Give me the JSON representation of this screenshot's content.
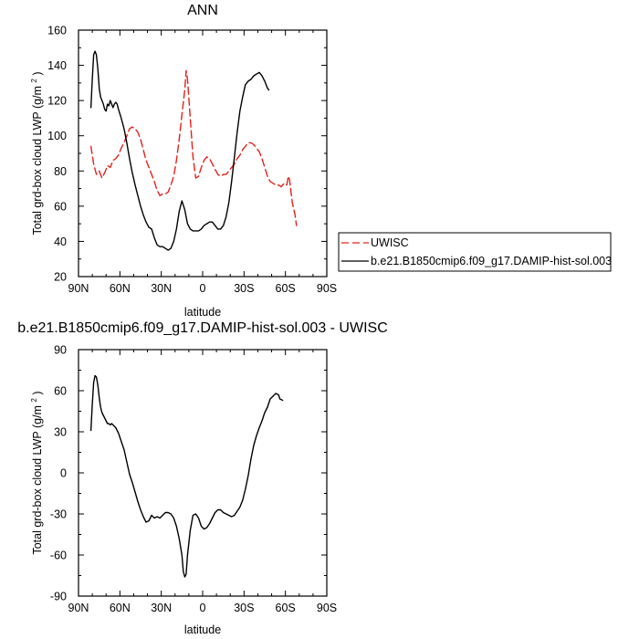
{
  "chart_data": [
    {
      "type": "line",
      "title": "ANN",
      "xlabel": "latitude",
      "ylabel": "Total grd-box cloud LWP",
      "ylabel_unit": "(g/m",
      "ylabel_unit_sup": "2",
      "ylabel_unit_close": ")",
      "xlim": [
        90,
        -90
      ],
      "ylim": [
        20,
        160
      ],
      "xticks": [
        {
          "value": 90,
          "label": "90N"
        },
        {
          "value": 60,
          "label": "60N"
        },
        {
          "value": 30,
          "label": "30N"
        },
        {
          "value": 0,
          "label": "0"
        },
        {
          "value": -30,
          "label": "30S"
        },
        {
          "value": -60,
          "label": "60S"
        },
        {
          "value": -90,
          "label": "90S"
        }
      ],
      "yticks": [
        {
          "value": 20,
          "label": "20"
        },
        {
          "value": 40,
          "label": "40"
        },
        {
          "value": 60,
          "label": "60"
        },
        {
          "value": 80,
          "label": "80"
        },
        {
          "value": 100,
          "label": "100"
        },
        {
          "value": 120,
          "label": "120"
        },
        {
          "value": 140,
          "label": "140"
        },
        {
          "value": 160,
          "label": "160"
        }
      ],
      "legend_position": "outside-right",
      "series": [
        {
          "name": "UWISC",
          "color": "#e8201a",
          "dash": "dashed",
          "points": [
            [
              81,
              94
            ],
            [
              79,
              84
            ],
            [
              77,
              78
            ],
            [
              75,
              80
            ],
            [
              73,
              76
            ],
            [
              71,
              79
            ],
            [
              69,
              83
            ],
            [
              67,
              82
            ],
            [
              65,
              86
            ],
            [
              63,
              87
            ],
            [
              61,
              89
            ],
            [
              59,
              93
            ],
            [
              57,
              96
            ],
            [
              55,
              100
            ],
            [
              53,
              104
            ],
            [
              51,
              105
            ],
            [
              49,
              104
            ],
            [
              47,
              102
            ],
            [
              45,
              98
            ],
            [
              43,
              92
            ],
            [
              41,
              86
            ],
            [
              39,
              82
            ],
            [
              37,
              78
            ],
            [
              35,
              74
            ],
            [
              33,
              69
            ],
            [
              31,
              66
            ],
            [
              29,
              67
            ],
            [
              27,
              67
            ],
            [
              25,
              68
            ],
            [
              23,
              72
            ],
            [
              21,
              77
            ],
            [
              19,
              86
            ],
            [
              17,
              98
            ],
            [
              15,
              112
            ],
            [
              13,
              126
            ],
            [
              12,
              137
            ],
            [
              11,
              132
            ],
            [
              9,
              110
            ],
            [
              7,
              88
            ],
            [
              5,
              76
            ],
            [
              3,
              77
            ],
            [
              1,
              82
            ],
            [
              -1,
              86
            ],
            [
              -3,
              88
            ],
            [
              -5,
              87
            ],
            [
              -7,
              84
            ],
            [
              -9,
              81
            ],
            [
              -11,
              78
            ],
            [
              -13,
              77
            ],
            [
              -15,
              78
            ],
            [
              -17,
              78
            ],
            [
              -19,
              80
            ],
            [
              -21,
              82
            ],
            [
              -23,
              84
            ],
            [
              -25,
              87
            ],
            [
              -27,
              89
            ],
            [
              -29,
              92
            ],
            [
              -31,
              94
            ],
            [
              -33,
              96
            ],
            [
              -35,
              96
            ],
            [
              -37,
              95
            ],
            [
              -39,
              93
            ],
            [
              -41,
              91
            ],
            [
              -43,
              87
            ],
            [
              -45,
              82
            ],
            [
              -47,
              77
            ],
            [
              -49,
              74
            ],
            [
              -51,
              73
            ],
            [
              -53,
              72
            ],
            [
              -55,
              72
            ],
            [
              -57,
              71
            ],
            [
              -59,
              73
            ],
            [
              -61,
              72
            ],
            [
              -62,
              77
            ],
            [
              -63,
              75
            ],
            [
              -65,
              62
            ],
            [
              -67,
              55
            ],
            [
              -68,
              49
            ]
          ]
        },
        {
          "name": "b.e21.B1850cmip6.f09_g17.DAMIP-hist-sol.003",
          "color": "#000000",
          "dash": "solid",
          "points": [
            [
              81,
              116
            ],
            [
              80,
              132
            ],
            [
              79,
              146
            ],
            [
              78,
              148
            ],
            [
              77,
              146
            ],
            [
              76,
              138
            ],
            [
              75,
              127
            ],
            [
              74,
              122
            ],
            [
              73,
              120
            ],
            [
              72,
              118
            ],
            [
              71,
              115
            ],
            [
              70,
              114
            ],
            [
              69,
              118
            ],
            [
              68,
              117
            ],
            [
              67,
              120
            ],
            [
              66,
              118
            ],
            [
              65,
              116
            ],
            [
              64,
              118
            ],
            [
              63,
              119
            ],
            [
              62,
              118
            ],
            [
              61,
              115
            ],
            [
              59,
              110
            ],
            [
              57,
              104
            ],
            [
              55,
              96
            ],
            [
              53,
              87
            ],
            [
              51,
              79
            ],
            [
              49,
              72
            ],
            [
              47,
              66
            ],
            [
              45,
              60
            ],
            [
              43,
              55
            ],
            [
              41,
              51
            ],
            [
              39,
              48
            ],
            [
              37,
              47
            ],
            [
              35,
              42
            ],
            [
              33,
              38
            ],
            [
              31,
              37
            ],
            [
              29,
              37
            ],
            [
              27,
              36
            ],
            [
              25,
              35
            ],
            [
              23,
              36
            ],
            [
              21,
              40
            ],
            [
              19,
              47
            ],
            [
              17,
              57
            ],
            [
              15,
              63
            ],
            [
              13,
              58
            ],
            [
              11,
              50
            ],
            [
              9,
              47
            ],
            [
              7,
              46
            ],
            [
              5,
              46
            ],
            [
              3,
              46
            ],
            [
              1,
              47
            ],
            [
              -1,
              49
            ],
            [
              -3,
              50
            ],
            [
              -5,
              51
            ],
            [
              -7,
              51
            ],
            [
              -9,
              49
            ],
            [
              -11,
              47
            ],
            [
              -13,
              47
            ],
            [
              -15,
              49
            ],
            [
              -17,
              54
            ],
            [
              -19,
              62
            ],
            [
              -21,
              74
            ],
            [
              -23,
              88
            ],
            [
              -25,
              102
            ],
            [
              -27,
              114
            ],
            [
              -29,
              122
            ],
            [
              -31,
              129
            ],
            [
              -33,
              131
            ],
            [
              -35,
              132
            ],
            [
              -37,
              134
            ],
            [
              -39,
              135
            ],
            [
              -41,
              136
            ],
            [
              -43,
              134
            ],
            [
              -45,
              131
            ],
            [
              -47,
              127
            ],
            [
              -48,
              126
            ]
          ]
        }
      ]
    },
    {
      "type": "line",
      "title": "b.e21.B1850cmip6.f09_g17.DAMIP-hist-sol.003 - UWISC",
      "xlabel": "latitude",
      "ylabel": "Total grd-box cloud LWP",
      "ylabel_unit": "(g/m",
      "ylabel_unit_sup": "2",
      "ylabel_unit_close": ")",
      "xlim": [
        90,
        -90
      ],
      "ylim": [
        -90,
        90
      ],
      "xticks": [
        {
          "value": 90,
          "label": "90N"
        },
        {
          "value": 60,
          "label": "60N"
        },
        {
          "value": 30,
          "label": "30N"
        },
        {
          "value": 0,
          "label": "0"
        },
        {
          "value": -30,
          "label": "30S"
        },
        {
          "value": -60,
          "label": "60S"
        },
        {
          "value": -90,
          "label": "90S"
        }
      ],
      "yticks": [
        {
          "value": -90,
          "label": "-90"
        },
        {
          "value": -60,
          "label": "-60"
        },
        {
          "value": -30,
          "label": "-30"
        },
        {
          "value": 0,
          "label": "0"
        },
        {
          "value": 30,
          "label": "30"
        },
        {
          "value": 60,
          "label": "60"
        },
        {
          "value": 90,
          "label": "90"
        }
      ],
      "series": [
        {
          "color": "#000000",
          "dash": "solid",
          "points": [
            [
              81,
              31
            ],
            [
              80,
              50
            ],
            [
              79,
              66
            ],
            [
              78,
              71
            ],
            [
              77,
              70
            ],
            [
              76,
              64
            ],
            [
              75,
              55
            ],
            [
              74,
              48
            ],
            [
              73,
              44
            ],
            [
              72,
              42
            ],
            [
              71,
              40
            ],
            [
              70,
              38
            ],
            [
              69,
              36
            ],
            [
              68,
              36
            ],
            [
              67,
              35
            ],
            [
              66,
              36
            ],
            [
              65,
              35
            ],
            [
              64,
              34
            ],
            [
              63,
              33
            ],
            [
              62,
              31
            ],
            [
              61,
              29
            ],
            [
              59,
              23
            ],
            [
              57,
              17
            ],
            [
              55,
              8
            ],
            [
              53,
              -1
            ],
            [
              51,
              -7
            ],
            [
              49,
              -14
            ],
            [
              47,
              -21
            ],
            [
              45,
              -27
            ],
            [
              43,
              -32
            ],
            [
              41,
              -36
            ],
            [
              39,
              -35
            ],
            [
              37,
              -31
            ],
            [
              35,
              -33
            ],
            [
              33,
              -32
            ],
            [
              31,
              -33
            ],
            [
              29,
              -31
            ],
            [
              27,
              -29
            ],
            [
              25,
              -29
            ],
            [
              23,
              -30
            ],
            [
              21,
              -33
            ],
            [
              19,
              -39
            ],
            [
              17,
              -48
            ],
            [
              15,
              -60
            ],
            [
              14,
              -72
            ],
            [
              13,
              -76
            ],
            [
              12,
              -74
            ],
            [
              11,
              -60
            ],
            [
              9,
              -42
            ],
            [
              7,
              -31
            ],
            [
              5,
              -30
            ],
            [
              3,
              -33
            ],
            [
              1,
              -39
            ],
            [
              -1,
              -41
            ],
            [
              -3,
              -40
            ],
            [
              -5,
              -37
            ],
            [
              -7,
              -33
            ],
            [
              -9,
              -29
            ],
            [
              -11,
              -27
            ],
            [
              -13,
              -27
            ],
            [
              -15,
              -29
            ],
            [
              -17,
              -30
            ],
            [
              -19,
              -31
            ],
            [
              -21,
              -32
            ],
            [
              -23,
              -31
            ],
            [
              -25,
              -28
            ],
            [
              -27,
              -25
            ],
            [
              -29,
              -20
            ],
            [
              -31,
              -12
            ],
            [
              -33,
              -2
            ],
            [
              -35,
              10
            ],
            [
              -37,
              20
            ],
            [
              -39,
              27
            ],
            [
              -41,
              33
            ],
            [
              -43,
              38
            ],
            [
              -45,
              44
            ],
            [
              -47,
              48
            ],
            [
              -49,
              54
            ],
            [
              -51,
              56
            ],
            [
              -53,
              58
            ],
            [
              -55,
              57
            ],
            [
              -56,
              54
            ],
            [
              -58,
              53
            ]
          ]
        }
      ]
    }
  ]
}
